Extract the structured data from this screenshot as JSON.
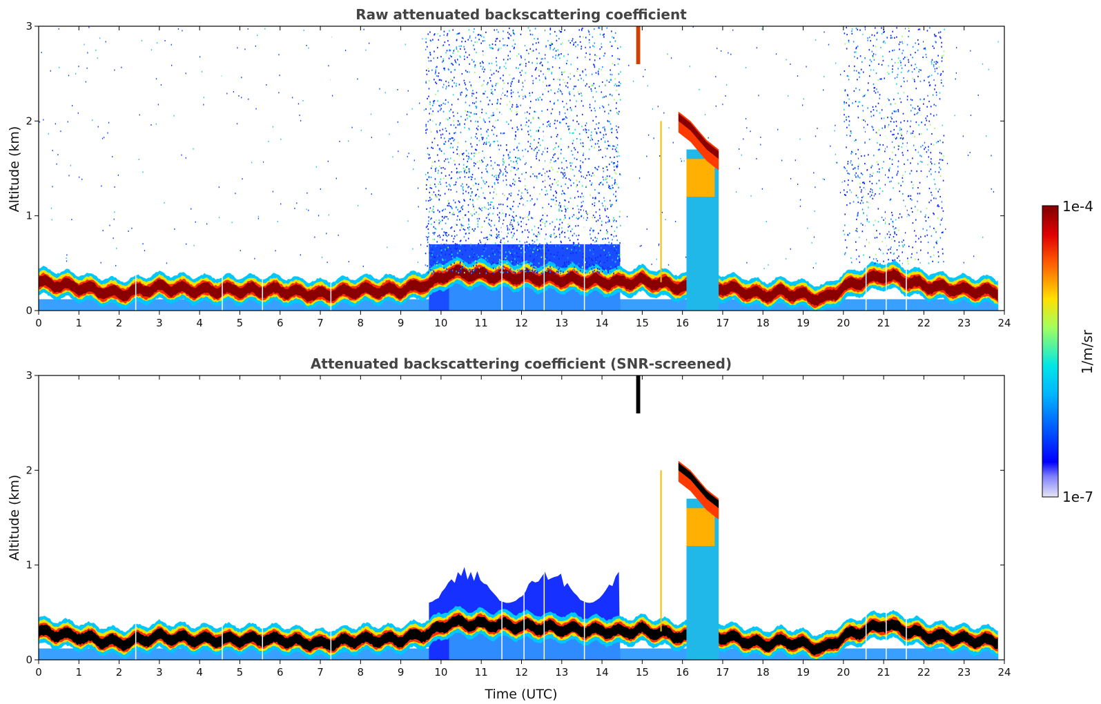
{
  "chart_data": [
    {
      "type": "heatmap",
      "title": "Raw attenuated backscattering coefficient",
      "xlabel": "",
      "ylabel": "Altitude (km)",
      "xlim": [
        0,
        24
      ],
      "ylim": [
        0,
        3
      ],
      "xticks": [
        0,
        1,
        2,
        3,
        4,
        5,
        6,
        7,
        8,
        9,
        10,
        11,
        12,
        13,
        14,
        15,
        16,
        17,
        18,
        19,
        20,
        21,
        22,
        23,
        24
      ],
      "yticks": [
        0,
        1,
        2,
        3
      ],
      "data_x_range": [
        0,
        23.85
      ],
      "boundary_layer_top_km": {
        "x": [
          0,
          1,
          2,
          3,
          4,
          5,
          6,
          7,
          8,
          9,
          9.8,
          10.2,
          14.5,
          15,
          16,
          17,
          18,
          18.5,
          19,
          19.5,
          20,
          21,
          22,
          23,
          23.85
        ],
        "y": [
          0.3,
          0.25,
          0.18,
          0.25,
          0.22,
          0.22,
          0.22,
          0.17,
          0.22,
          0.22,
          0.3,
          0.4,
          0.3,
          0.32,
          0.25,
          0.25,
          0.17,
          0.2,
          0.17,
          0.12,
          0.25,
          0.38,
          0.27,
          0.22,
          0.2
        ]
      },
      "features": [
        {
          "name": "noise_region",
          "x_range": [
            9.6,
            14.45
          ],
          "altitude_km": [
            0.4,
            3.0
          ]
        },
        {
          "name": "noise_region",
          "x_range": [
            20.0,
            22.5
          ],
          "altitude_km": [
            0.5,
            3.0
          ]
        },
        {
          "name": "cloud_layer",
          "x": [
            15.9,
            16.2,
            16.6,
            16.9
          ],
          "top_km": [
            2.1,
            2.0,
            1.8,
            1.7
          ]
        },
        {
          "name": "precipitation_column",
          "x_range": [
            16.1,
            16.9
          ],
          "altitude_km": [
            0,
            1.7
          ]
        }
      ],
      "colorbar": {
        "min_label": "1e-7",
        "max_label": "1e-4",
        "label": "1/m/sr",
        "scale": "log",
        "colormap": "jet"
      }
    },
    {
      "type": "heatmap",
      "title": "Attenuated backscattering coefficient (SNR-screened)",
      "xlabel": "Time (UTC)",
      "ylabel": "Altitude (km)",
      "xlim": [
        0,
        24
      ],
      "ylim": [
        0,
        3
      ],
      "xticks": [
        0,
        1,
        2,
        3,
        4,
        5,
        6,
        7,
        8,
        9,
        10,
        11,
        12,
        13,
        14,
        15,
        16,
        17,
        18,
        19,
        20,
        21,
        22,
        23,
        24
      ],
      "yticks": [
        0,
        1,
        2,
        3
      ],
      "data_x_range": [
        0,
        23.85
      ],
      "features": [
        {
          "name": "residual_layer_aerosol",
          "x_range": [
            9.7,
            14.45
          ],
          "top_km": [
            0.6,
            1.0
          ]
        },
        {
          "name": "cloud_layer",
          "x": [
            15.9,
            16.2,
            16.6,
            16.9
          ],
          "top_km": [
            2.1,
            2.0,
            1.8,
            1.7
          ]
        }
      ]
    }
  ],
  "colorbar": {
    "max_label": "1e-4",
    "min_label": "1e-7",
    "label": "1/m/sr"
  }
}
